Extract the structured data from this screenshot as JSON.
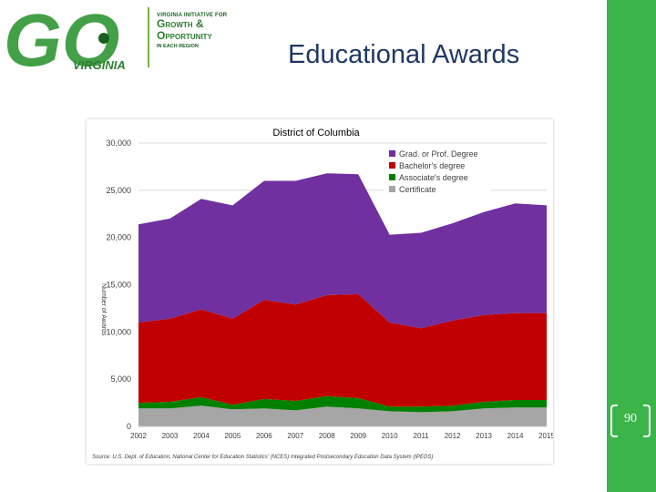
{
  "logo": {
    "go_text": "GO",
    "virginia": "VIRGINIA",
    "initiative_line": "VIRGINIA INITIATIVE FOR",
    "growth_line": "Growth &",
    "opportunity_line": "Opportunity",
    "region_line": "IN EACH REGION"
  },
  "slide": {
    "title": "Educational Awards",
    "page_number": "90"
  },
  "colors": {
    "grad": "#7030a0",
    "bachelor": "#c00000",
    "associate": "#008000",
    "certificate": "#a6a6a6",
    "side_bar": "#3bb54a",
    "title": "#1f3864"
  },
  "chart_data": {
    "type": "area",
    "stacked": true,
    "title": "District of Columbia",
    "ylabel": "Number of Awards",
    "xlabel": "",
    "x": [
      "2002",
      "2003",
      "2004",
      "2005",
      "2006",
      "2007",
      "2008",
      "2009",
      "2010",
      "2011",
      "2012",
      "2013",
      "2014",
      "2015"
    ],
    "yticks": [
      "0",
      "5,000",
      "10,000",
      "15,000",
      "20,000",
      "25,000",
      "30,000"
    ],
    "ylim": [
      0,
      30000
    ],
    "legend_position": "top-right",
    "series": [
      {
        "name": "Certificate",
        "color": "#a6a6a6",
        "values": [
          1900,
          1900,
          2200,
          1800,
          1900,
          1700,
          2100,
          1900,
          1600,
          1500,
          1600,
          1900,
          2000,
          2000
        ]
      },
      {
        "name": "Associate's degree",
        "color": "#008000",
        "values": [
          600,
          700,
          900,
          500,
          1000,
          1000,
          1100,
          1100,
          500,
          600,
          600,
          700,
          800,
          800
        ]
      },
      {
        "name": "Bachelor's degree",
        "color": "#c00000",
        "values": [
          8500,
          8800,
          9300,
          9100,
          10500,
          10200,
          10700,
          11000,
          8900,
          8300,
          9000,
          9200,
          9200,
          9200
        ]
      },
      {
        "name": "Grad. or Prof. Degree",
        "color": "#7030a0",
        "values": [
          10400,
          10600,
          11700,
          12000,
          12600,
          13100,
          12900,
          12700,
          9300,
          10100,
          10300,
          10900,
          11600,
          11400
        ]
      }
    ],
    "source": "Source: U.S. Dept. of Education, National Center for Education Statistics' (NCES) Integrated Postsecondary Education Data System (IPEDS)"
  }
}
